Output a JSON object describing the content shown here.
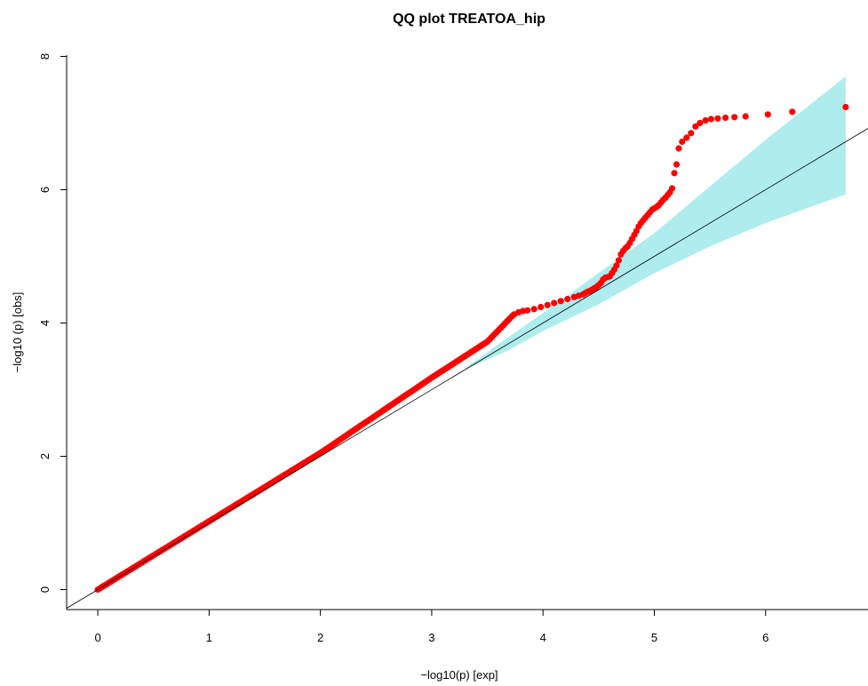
{
  "chart_data": {
    "type": "scatter",
    "title": "QQ plot TREATOA_hip",
    "xlabel": "−log10(p) [exp]",
    "ylabel": "−log10 (p) [obs]",
    "xlim": [
      -0.28,
      6.92
    ],
    "ylim": [
      -0.3,
      8.02
    ],
    "x_ticks": [
      "0",
      "1",
      "2",
      "3",
      "4",
      "5",
      "6"
    ],
    "y_ticks": [
      "0",
      "2",
      "4",
      "6",
      "8"
    ],
    "grid": false,
    "colors": {
      "points": "#ff0000",
      "band": "#aeecee",
      "expected_line": "#000000",
      "axis": "#000000"
    },
    "series": [
      {
        "kind": "points",
        "x": [
          3.74,
          3.78,
          3.82,
          3.86,
          3.92,
          3.98,
          4.04,
          4.1,
          4.16,
          4.22,
          4.28,
          4.32,
          4.36,
          4.38,
          4.4,
          4.42,
          4.44,
          4.46,
          4.48,
          4.5,
          4.52,
          4.54,
          4.56,
          4.58,
          4.6,
          4.62,
          4.64,
          4.66,
          4.68,
          4.7,
          4.72,
          4.74,
          4.76,
          4.78,
          4.8,
          4.82,
          4.84,
          4.86,
          4.88,
          4.9,
          4.92,
          4.94,
          4.96,
          4.98,
          5.0,
          5.02,
          5.04,
          5.06,
          5.08,
          5.1,
          5.12,
          5.14,
          5.16,
          5.18,
          5.2,
          5.22,
          5.25,
          5.29,
          5.33,
          5.37,
          5.41,
          5.46,
          5.51,
          5.57,
          5.64,
          5.72,
          5.82,
          6.02,
          6.24,
          6.72
        ],
        "y": [
          4.13,
          4.16,
          4.18,
          4.19,
          4.21,
          4.24,
          4.27,
          4.3,
          4.33,
          4.36,
          4.39,
          4.41,
          4.43,
          4.45,
          4.47,
          4.48,
          4.5,
          4.52,
          4.54,
          4.57,
          4.6,
          4.65,
          4.68,
          4.69,
          4.7,
          4.75,
          4.8,
          4.86,
          4.94,
          5.03,
          5.08,
          5.12,
          5.15,
          5.2,
          5.26,
          5.32,
          5.38,
          5.45,
          5.5,
          5.54,
          5.58,
          5.62,
          5.66,
          5.7,
          5.72,
          5.74,
          5.77,
          5.81,
          5.85,
          5.88,
          5.92,
          5.96,
          6.02,
          6.25,
          6.38,
          6.62,
          6.72,
          6.78,
          6.85,
          6.95,
          7.0,
          7.04,
          7.06,
          7.07,
          7.08,
          7.09,
          7.1,
          7.13,
          7.17,
          7.24
        ]
      },
      {
        "kind": "points_on_line",
        "x_range": [
          0.0,
          3.72
        ],
        "y_at": [
          [
            0.0,
            0.0
          ],
          [
            2.0,
            2.05
          ],
          [
            3.0,
            3.18
          ],
          [
            3.5,
            3.72
          ],
          [
            3.72,
            4.1
          ]
        ]
      },
      {
        "kind": "confidence_band",
        "x": [
          3.3,
          3.7,
          4.0,
          4.5,
          5.0,
          5.5,
          6.0,
          6.72
        ],
        "lower": [
          3.3,
          3.6,
          3.88,
          4.28,
          4.75,
          5.15,
          5.5,
          5.93
        ],
        "upper": [
          3.32,
          3.8,
          4.15,
          4.75,
          5.35,
          6.05,
          6.75,
          7.7
        ]
      },
      {
        "kind": "expected_line",
        "slope": 1,
        "intercept": 0
      }
    ]
  }
}
